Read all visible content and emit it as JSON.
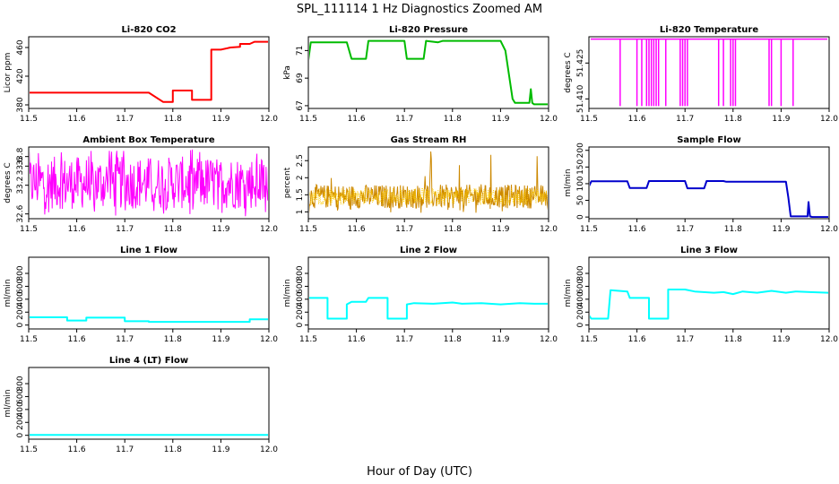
{
  "figure": {
    "title": "SPL_111114  1 Hz Diagnostics Zoomed AM",
    "xlabel": "Hour of Day (UTC)"
  },
  "chart_data": [
    {
      "type": "line",
      "title": "Li-820 CO2",
      "ylabel": "Licor ppm",
      "color": "#ff0000",
      "xlim": [
        11.5,
        12.0
      ],
      "ylim": [
        375,
        475
      ],
      "xticks": [
        "11.5",
        "11.6",
        "11.7",
        "11.8",
        "11.9",
        "12.0"
      ],
      "yticks": [
        380,
        420,
        460
      ],
      "series": [
        {
          "x": [
            11.5,
            11.75,
            11.75,
            11.78,
            11.78,
            11.8,
            11.8,
            11.84,
            11.84,
            11.88,
            11.88,
            11.9,
            11.92,
            11.94,
            11.94,
            11.96,
            11.97,
            12.0
          ],
          "y": [
            397,
            397,
            397,
            384,
            384,
            384,
            400,
            400,
            387,
            387,
            457,
            457,
            460,
            461,
            465,
            465,
            468,
            468
          ]
        }
      ]
    },
    {
      "type": "line",
      "title": "Li-820 Pressure",
      "ylabel": "kPa",
      "color": "#00bb00",
      "xlim": [
        11.5,
        12.0
      ],
      "ylim": [
        66.8,
        72.0
      ],
      "xticks": [
        "11.5",
        "11.6",
        "11.7",
        "11.8",
        "11.9",
        "12.0"
      ],
      "yticks": [
        67,
        69,
        71
      ],
      "series": [
        {
          "x": [
            11.5,
            11.505,
            11.58,
            11.59,
            11.62,
            11.625,
            11.7,
            11.705,
            11.74,
            11.745,
            11.77,
            11.78,
            11.9,
            11.91,
            11.925,
            11.93,
            11.96,
            11.963,
            11.966,
            11.97,
            12.0
          ],
          "y": [
            70.3,
            71.6,
            71.6,
            70.4,
            70.4,
            71.7,
            71.7,
            70.4,
            70.4,
            71.7,
            71.6,
            71.7,
            71.7,
            71.0,
            67.5,
            67.2,
            67.2,
            68.2,
            67.2,
            67.1,
            67.1
          ]
        }
      ]
    },
    {
      "type": "line",
      "title": "Li-820 Temperature",
      "ylabel": "degrees C",
      "color": "#ff00ff",
      "xlim": [
        11.5,
        12.0
      ],
      "ylim": [
        51.406,
        51.436
      ],
      "xticks": [
        "11.5",
        "11.6",
        "11.7",
        "11.8",
        "11.9",
        "12.0"
      ],
      "yticks": [
        "51.410",
        "51.425"
      ],
      "baseline": 51.435,
      "low": 51.407,
      "dips": [
        11.565,
        11.6,
        11.61,
        11.62,
        11.625,
        11.63,
        11.635,
        11.64,
        11.645,
        11.66,
        11.69,
        11.695,
        11.7,
        11.705,
        11.77,
        11.78,
        11.795,
        11.8,
        11.805,
        11.875,
        11.88,
        11.9,
        11.925
      ]
    },
    {
      "type": "line",
      "title": "Ambient Box Temperature",
      "ylabel": "degrees C",
      "color": "#ff00ff",
      "xlim": [
        11.5,
        12.0
      ],
      "ylim": [
        32.5,
        34.0
      ],
      "xticks": [
        "11.5",
        "11.6",
        "11.7",
        "11.8",
        "11.9",
        "12.0"
      ],
      "yticks": [
        32.6,
        33.2,
        33.6,
        33.8
      ],
      "noise_band": {
        "center": 33.15,
        "low": 32.7,
        "high": 33.8,
        "spike_high": 33.95,
        "spike_low": 32.55
      }
    },
    {
      "type": "scatter",
      "title": "Gas Stream RH",
      "ylabel": "percent",
      "color": "#cc8800",
      "color2": "#ffcc00",
      "xlim": [
        11.5,
        12.0
      ],
      "ylim": [
        0.8,
        2.9
      ],
      "xticks": [
        "11.5",
        "11.6",
        "11.7",
        "11.8",
        "11.9",
        "12.0"
      ],
      "yticks": [
        1.0,
        1.5,
        2.0,
        2.5
      ],
      "noise_band": {
        "center": 1.45,
        "low": 1.1,
        "high": 1.8,
        "spike_high": 2.8,
        "spike_low": 0.95
      }
    },
    {
      "type": "line",
      "title": "Sample Flow",
      "ylabel": "ml/min",
      "color": "#0000cc",
      "xlim": [
        11.5,
        12.0
      ],
      "ylim": [
        -5,
        210
      ],
      "xticks": [
        "11.5",
        "11.6",
        "11.7",
        "11.8",
        "11.9",
        "12.0"
      ],
      "yticks": [
        0,
        50,
        100,
        150,
        200
      ],
      "series": [
        {
          "x": [
            11.5,
            11.505,
            11.58,
            11.585,
            11.62,
            11.625,
            11.7,
            11.705,
            11.74,
            11.745,
            11.78,
            11.785,
            11.91,
            11.915,
            11.92,
            11.955,
            11.957,
            11.96,
            11.965,
            12.0
          ],
          "y": [
            92,
            107,
            107,
            87,
            87,
            108,
            108,
            86,
            86,
            108,
            108,
            106,
            106,
            60,
            2,
            2,
            45,
            2,
            0,
            0
          ]
        }
      ]
    },
    {
      "type": "line",
      "title": "Line 1 Flow",
      "ylabel": "ml/min",
      "color": "#00ffff",
      "xlim": [
        11.5,
        12.0
      ],
      "ylim": [
        -60,
        1050
      ],
      "xticks": [
        "11.5",
        "11.6",
        "11.7",
        "11.8",
        "11.9",
        "12.0"
      ],
      "yticks": [
        0,
        200,
        400,
        600,
        800
      ],
      "series": [
        {
          "x": [
            11.5,
            11.58,
            11.58,
            11.62,
            11.62,
            11.7,
            11.7,
            11.75,
            11.75,
            11.96,
            11.96,
            12.0
          ],
          "y": [
            120,
            120,
            70,
            70,
            115,
            115,
            60,
            60,
            50,
            50,
            90,
            90
          ]
        }
      ]
    },
    {
      "type": "line",
      "title": "Line 2 Flow",
      "ylabel": "ml/min",
      "color": "#00ffff",
      "xlim": [
        11.5,
        12.0
      ],
      "ylim": [
        -60,
        1050
      ],
      "xticks": [
        "11.5",
        "11.6",
        "11.7",
        "11.8",
        "11.9",
        "12.0"
      ],
      "yticks": [
        0,
        200,
        400,
        600,
        800
      ],
      "series": [
        {
          "x": [
            11.5,
            11.54,
            11.54,
            11.58,
            11.58,
            11.59,
            11.62,
            11.625,
            11.665,
            11.665,
            11.705,
            11.705,
            11.72,
            11.76,
            11.8,
            11.82,
            11.86,
            11.9,
            11.94,
            11.97,
            12.0
          ],
          "y": [
            420,
            420,
            100,
            100,
            320,
            360,
            360,
            420,
            420,
            100,
            100,
            320,
            340,
            330,
            350,
            330,
            340,
            320,
            340,
            330,
            330
          ]
        }
      ]
    },
    {
      "type": "line",
      "title": "Line 3 Flow",
      "ylabel": "ml/min",
      "color": "#00ffff",
      "xlim": [
        11.5,
        12.0
      ],
      "ylim": [
        -60,
        1050
      ],
      "xticks": [
        "11.5",
        "11.6",
        "11.7",
        "11.8",
        "11.9",
        "12.0"
      ],
      "yticks": [
        0,
        200,
        400,
        600,
        800
      ],
      "series": [
        {
          "x": [
            11.5,
            11.505,
            11.54,
            11.545,
            11.58,
            11.585,
            11.625,
            11.625,
            11.665,
            11.665,
            11.7,
            11.72,
            11.76,
            11.78,
            11.8,
            11.82,
            11.85,
            11.88,
            11.91,
            11.93,
            11.96,
            12.0
          ],
          "y": [
            150,
            100,
            100,
            540,
            520,
            420,
            420,
            100,
            100,
            550,
            550,
            520,
            500,
            510,
            480,
            520,
            500,
            530,
            500,
            520,
            510,
            500
          ]
        }
      ]
    },
    {
      "type": "line",
      "title": "Line 4 (LT) Flow",
      "ylabel": "ml/min",
      "color": "#00ffff",
      "xlim": [
        11.5,
        12.0
      ],
      "ylim": [
        -60,
        1050
      ],
      "xticks": [
        "11.5",
        "11.6",
        "11.7",
        "11.8",
        "11.9",
        "12.0"
      ],
      "yticks": [
        0,
        200,
        400,
        600,
        800
      ],
      "series": [
        {
          "x": [
            11.5,
            12.0
          ],
          "y": [
            5,
            5
          ]
        }
      ]
    }
  ]
}
